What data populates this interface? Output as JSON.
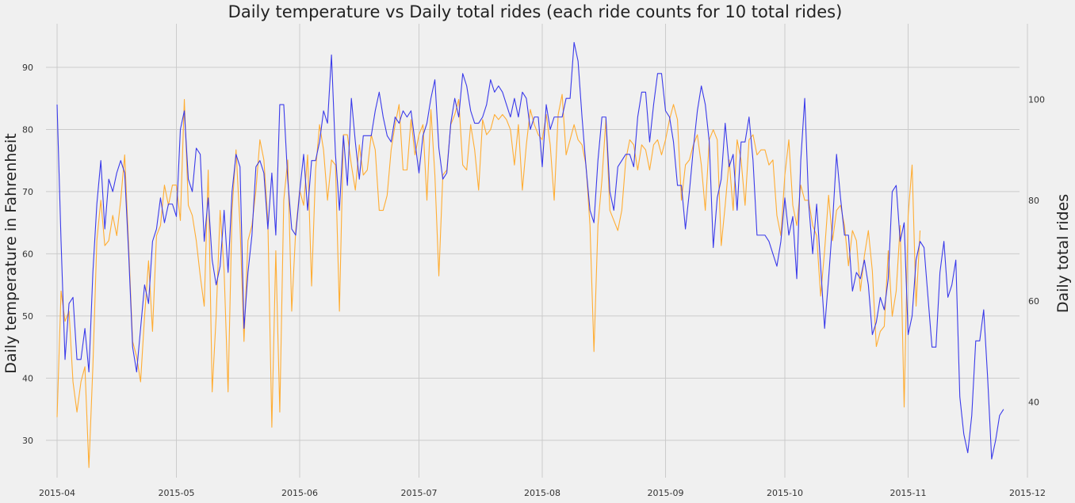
{
  "chart_data": {
    "type": "line",
    "title": "Daily temperature vs Daily total rides (each ride counts for 10 total rides)",
    "ylabel_left": "Daily temperature in Fahrenheit",
    "ylabel_right": "Daily total rides",
    "x_ticks": [
      "2015-04",
      "2015-05",
      "2015-06",
      "2015-07",
      "2015-08",
      "2015-09",
      "2015-10",
      "2015-11",
      "2015-12"
    ],
    "y_left_ticks": [
      30,
      40,
      50,
      60,
      70,
      80,
      90
    ],
    "y_right_ticks": [
      40,
      60,
      80,
      100
    ],
    "ylim_left": [
      24,
      97
    ],
    "ylim_right": [
      25,
      115
    ],
    "x_start": "2015-04-01",
    "grid": true,
    "series": [
      {
        "axis": "left",
        "color": "#3a3aea",
        "values": [
          84,
          62,
          43,
          52,
          53,
          43,
          43,
          48,
          41,
          57,
          68,
          75,
          64,
          72,
          70,
          73,
          75,
          73,
          60,
          45,
          41,
          48,
          55,
          52,
          62,
          64,
          69,
          65,
          68,
          68,
          66,
          80,
          83,
          72,
          70,
          77,
          76,
          62,
          69,
          59,
          55,
          58,
          67,
          57,
          70,
          76,
          74,
          48,
          57,
          63,
          74,
          75,
          73,
          64,
          73,
          63,
          84,
          84,
          72,
          64,
          63,
          70,
          76,
          67,
          75,
          75,
          78,
          83,
          81,
          92,
          76,
          67,
          79,
          71,
          85,
          78,
          72,
          79,
          79,
          79,
          83,
          86,
          82,
          79,
          78,
          82,
          81,
          83,
          82,
          83,
          78,
          73,
          79,
          81,
          85,
          88,
          77,
          72,
          73,
          81,
          85,
          82,
          89,
          87,
          83,
          81,
          81,
          82,
          84,
          88,
          86,
          87,
          86,
          84,
          82,
          85,
          82,
          86,
          85,
          80,
          82,
          82,
          74,
          84,
          80,
          82,
          82,
          82,
          85,
          85,
          94,
          91,
          82,
          74,
          67,
          65,
          75,
          82,
          82,
          70,
          67,
          74,
          75,
          76,
          76,
          74,
          82,
          86,
          86,
          78,
          84,
          89,
          89,
          83,
          82,
          78,
          71,
          71,
          64,
          70,
          77,
          83,
          87,
          84,
          78,
          61,
          69,
          72,
          81,
          74,
          76,
          67,
          78,
          78,
          82,
          75,
          63,
          63,
          63,
          62,
          60,
          58,
          62,
          69,
          63,
          66,
          56,
          75,
          85,
          68,
          60,
          68,
          58,
          48,
          56,
          65,
          76,
          69,
          63,
          63,
          54,
          57,
          56,
          59,
          55,
          47,
          49,
          53,
          51,
          56,
          70,
          71,
          62,
          65,
          47,
          50,
          59,
          62,
          61,
          53,
          45,
          45,
          57,
          62,
          53,
          55,
          59,
          37,
          31,
          28,
          34,
          46,
          46,
          51,
          40,
          27,
          30,
          34,
          35
        ]
      },
      {
        "axis": "right",
        "color": "#ffad33",
        "values": [
          37,
          62,
          56,
          58,
          44,
          38,
          44,
          47,
          27,
          47,
          72,
          80,
          71,
          72,
          77,
          73,
          80,
          89,
          71,
          52,
          49,
          44,
          57,
          68,
          54,
          73,
          75,
          83,
          79,
          83,
          83,
          76,
          100,
          79,
          77,
          72,
          65,
          59,
          86,
          42,
          57,
          78,
          66,
          42,
          78,
          90,
          75,
          52,
          72,
          75,
          82,
          92,
          88,
          76,
          35,
          70,
          38,
          80,
          88,
          58,
          74,
          82,
          79,
          89,
          63,
          86,
          95,
          90,
          80,
          88,
          87,
          58,
          93,
          93,
          87,
          82,
          91,
          85,
          86,
          93,
          90,
          78,
          78,
          81,
          90,
          95,
          99,
          86,
          86,
          96,
          89,
          93,
          95,
          80,
          98,
          85,
          65,
          85,
          86,
          95,
          97,
          100,
          87,
          86,
          95,
          90,
          82,
          96,
          93,
          94,
          97,
          96,
          97,
          96,
          94,
          87,
          95,
          82,
          91,
          98,
          95,
          93,
          92,
          97,
          91,
          80,
          97,
          101,
          89,
          92,
          95,
          92,
          91,
          87,
          75,
          50,
          75,
          84,
          96,
          78,
          76,
          74,
          78,
          88,
          92,
          91,
          86,
          91,
          90,
          86,
          91,
          92,
          89,
          92,
          96,
          99,
          96,
          80,
          87,
          88,
          91,
          93,
          87,
          78,
          92,
          94,
          92,
          71,
          79,
          88,
          78,
          92,
          88,
          79,
          92,
          93,
          89,
          90,
          90,
          87,
          88,
          77,
          73,
          85,
          92,
          79,
          75,
          83,
          80,
          80,
          75,
          73,
          61,
          70,
          81,
          72,
          78,
          79,
          75,
          67,
          74,
          72,
          62,
          69,
          74,
          66,
          51,
          54,
          55,
          70,
          57,
          62,
          75,
          39,
          77,
          87,
          59,
          74
        ]
      }
    ]
  }
}
